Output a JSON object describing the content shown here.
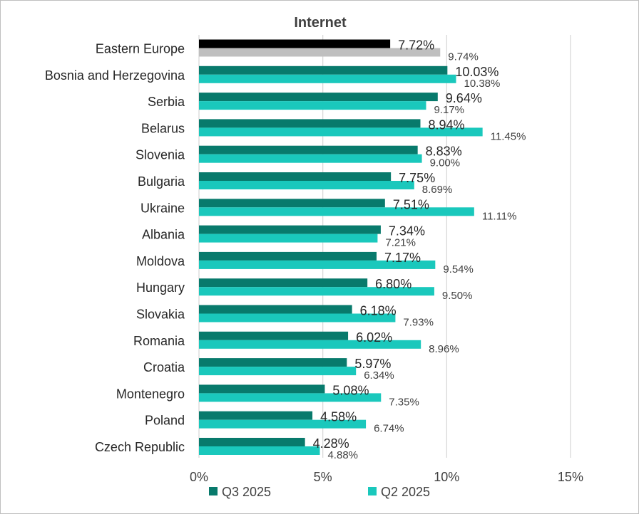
{
  "colors": {
    "q3_bar": "#087a6c",
    "q2_bar": "#1ac8bc",
    "ee_q3_bar": "#000000",
    "ee_q2_bar": "#bfbfbf",
    "grid": "#d9d9d9"
  },
  "chart_data": {
    "type": "bar",
    "orientation": "horizontal",
    "title": "Internet",
    "categories": [
      "Eastern Europe",
      "Bosnia and Herzegovina",
      "Serbia",
      "Belarus",
      "Slovenia",
      "Bulgaria",
      "Ukraine",
      "Albania",
      "Moldova",
      "Hungary",
      "Slovakia",
      "Romania",
      "Croatia",
      "Montenegro",
      "Poland",
      "Czech Republic"
    ],
    "series": [
      {
        "name": "Q3 2025",
        "values": [
          7.72,
          10.03,
          9.64,
          8.94,
          8.83,
          7.75,
          7.51,
          7.34,
          7.17,
          6.8,
          6.18,
          6.02,
          5.97,
          5.08,
          4.58,
          4.28
        ],
        "labels": [
          "7.72%",
          "10.03%",
          "9.64%",
          "8.94%",
          "8.83%",
          "7.75%",
          "7.51%",
          "7.34%",
          "7.17%",
          "6.80%",
          "6.18%",
          "6.02%",
          "5.97%",
          "5.08%",
          "4.58%",
          "4.28%"
        ]
      },
      {
        "name": "Q2 2025",
        "values": [
          9.74,
          10.38,
          9.17,
          11.45,
          9.0,
          8.69,
          11.11,
          7.21,
          9.54,
          9.5,
          7.93,
          8.96,
          6.34,
          7.35,
          6.74,
          4.88
        ],
        "labels": [
          "9.74%",
          "10.38%",
          "9.17%",
          "11.45%",
          "9.00%",
          "8.69%",
          "11.11%",
          "7.21%",
          "9.54%",
          "9.50%",
          "7.93%",
          "8.96%",
          "6.34%",
          "7.35%",
          "6.74%",
          "4.88%"
        ]
      }
    ],
    "x_ticks": [
      "0%",
      "5%",
      "10%",
      "15%"
    ],
    "x_tick_values": [
      0,
      5,
      10,
      15
    ],
    "xlim": [
      0,
      15
    ],
    "grid": true,
    "legend_position": "bottom"
  }
}
